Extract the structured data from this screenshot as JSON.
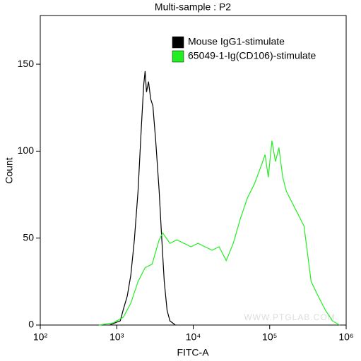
{
  "chart_data": {
    "type": "line",
    "title": "Multi-sample : P2",
    "xlabel": "FITC-A",
    "ylabel": "Count",
    "xscale": "log",
    "xlim": [
      100,
      1000000
    ],
    "xticks": [
      {
        "value": 100,
        "label": "10²"
      },
      {
        "value": 1000,
        "label": "10³"
      },
      {
        "value": 10000,
        "label": "10⁴"
      },
      {
        "value": 100000,
        "label": "10⁵"
      },
      {
        "value": 1000000,
        "label": "10⁶"
      }
    ],
    "ylim": [
      0,
      178
    ],
    "yticks": [
      0,
      50,
      100,
      150
    ],
    "legend": "top-right",
    "annotation": "WWW.PTGLAB.COM",
    "series": [
      {
        "name": "Mouse IgG1-stimulate",
        "color": "#000000",
        "x": [
          807,
          1110,
          1220,
          1370,
          1530,
          1700,
          1900,
          2100,
          2250,
          2350,
          2450,
          2600,
          2780,
          2970,
          3230,
          3590,
          3840,
          4180,
          4550,
          4960,
          5850
        ],
        "values": [
          0,
          2.4,
          9,
          16.6,
          28.8,
          49,
          77,
          114,
          138,
          146,
          134,
          140,
          130,
          126,
          106,
          77,
          53,
          25,
          8.5,
          2.4,
          0
        ]
      },
      {
        "name": "65049-1-Ig(CD106)-stimulate",
        "color": "#22ee22",
        "x": [
          587,
          895,
          1220,
          1530,
          1900,
          2350,
          2900,
          3590,
          3990,
          4960,
          6110,
          7560,
          9350,
          11560,
          14290,
          17660,
          21840,
          27000,
          33370,
          41240,
          51000,
          63000,
          78000,
          87000,
          96000,
          107000,
          119000,
          132000,
          148000,
          165000,
          183000,
          227000,
          281000,
          348000,
          432000,
          535000,
          662000,
          820000
        ],
        "values": [
          0,
          1.2,
          4.5,
          12.6,
          25,
          33,
          35,
          49,
          53,
          47,
          49,
          47,
          45,
          47,
          45,
          43,
          45,
          37,
          47,
          61,
          73,
          81,
          92,
          98,
          85,
          106,
          94,
          102,
          85,
          77,
          73,
          65,
          57,
          25,
          16.6,
          8.5,
          2.4,
          0
        ]
      }
    ]
  }
}
